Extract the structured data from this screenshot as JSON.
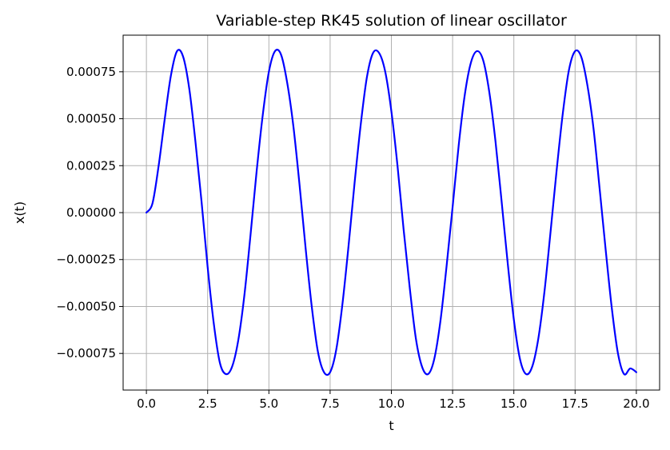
{
  "chart_data": {
    "type": "line",
    "title": "Variable-step RK45 solution of linear oscillator",
    "xlabel": "t",
    "ylabel": "x(t)",
    "xlim": [
      -0.95,
      20.95
    ],
    "ylim": [
      -0.000945,
      0.000945
    ],
    "grid": true,
    "x_ticks": [
      0.0,
      2.5,
      5.0,
      7.5,
      10.0,
      12.5,
      15.0,
      17.5,
      20.0
    ],
    "x_tick_labels": [
      "0.0",
      "2.5",
      "5.0",
      "7.5",
      "10.0",
      "12.5",
      "15.0",
      "17.5",
      "20.0"
    ],
    "y_ticks": [
      -0.00075,
      -0.0005,
      -0.00025,
      0.0,
      0.00025,
      0.0005,
      0.00075
    ],
    "y_tick_labels": [
      "−0.00075",
      "−0.00050",
      "−0.00025",
      "0.00000",
      "0.00025",
      "0.00050",
      "0.00075"
    ],
    "series": [
      {
        "color": "#0000ff",
        "x": [
          0.0,
          0.25,
          0.5,
          0.75,
          1.0,
          1.25,
          1.5,
          1.75,
          2.0,
          2.25,
          2.5,
          2.75,
          3.0,
          3.25,
          3.5,
          3.75,
          4.0,
          4.25,
          4.5,
          4.75,
          5.0,
          5.25,
          5.5,
          5.75,
          6.0,
          6.25,
          6.5,
          6.75,
          7.0,
          7.25,
          7.5,
          7.75,
          8.0,
          8.25,
          8.5,
          8.75,
          9.0,
          9.25,
          9.5,
          9.75,
          10.0,
          10.25,
          10.5,
          10.75,
          11.0,
          11.25,
          11.5,
          11.75,
          12.0,
          12.25,
          12.5,
          12.75,
          13.0,
          13.25,
          13.5,
          13.75,
          14.0,
          14.25,
          14.5,
          14.75,
          15.0,
          15.25,
          15.5,
          15.75,
          16.0,
          16.25,
          16.5,
          16.75,
          17.0,
          17.25,
          17.5,
          17.75,
          18.0,
          18.25,
          18.5,
          18.75,
          19.0,
          19.25,
          19.5,
          19.75,
          20.0
        ],
        "y": [
          0.0,
          5e-05,
          0.00025,
          0.0005,
          0.00073,
          0.00086,
          0.00083,
          0.00066,
          0.00038,
          6e-05,
          -0.00029,
          -0.00059,
          -0.0008,
          -0.00086,
          -0.00082,
          -0.00068,
          -0.00044,
          -0.00012,
          0.00022,
          0.00052,
          0.00075,
          0.00086,
          0.00084,
          0.00069,
          0.00046,
          0.00015,
          -0.00019,
          -0.0005,
          -0.00074,
          -0.00085,
          -0.00085,
          -0.00073,
          -0.00049,
          -0.00018,
          0.00016,
          0.00047,
          0.00072,
          0.00085,
          0.00085,
          0.00075,
          0.00054,
          0.00025,
          -9e-05,
          -0.0004,
          -0.00067,
          -0.00082,
          -0.00086,
          -0.00078,
          -0.00058,
          -0.00029,
          3e-05,
          0.00036,
          0.00063,
          0.0008,
          0.00086,
          0.00081,
          0.00064,
          0.00038,
          6e-05,
          -0.00027,
          -0.00057,
          -0.00078,
          -0.00086,
          -0.00082,
          -0.00067,
          -0.00042,
          -0.0001,
          0.00023,
          0.00053,
          0.00076,
          0.00086,
          0.00083,
          0.00068,
          0.00045,
          0.00013,
          -0.0002,
          -0.00051,
          -0.00075,
          -0.00086,
          -0.00083,
          -0.00085
        ]
      }
    ]
  }
}
